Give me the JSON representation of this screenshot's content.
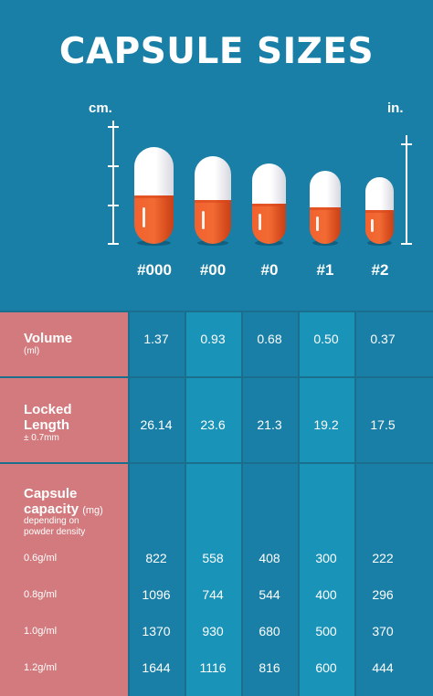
{
  "title": "CAPSULE SIZES",
  "units": {
    "left": "cm.",
    "right": "in."
  },
  "sizes": [
    "#000",
    "#00",
    "#0",
    "#1",
    "#2"
  ],
  "colors": {
    "background": "#1a7fa6",
    "label_column": "#d27a7d",
    "capsule_top": "#ffffff",
    "capsule_bottom": "#f2612e"
  },
  "rows": {
    "volume": {
      "label": "Volume",
      "unit": "(ml)",
      "values": [
        "1.37",
        "0.93",
        "0.68",
        "0.50",
        "0.37"
      ]
    },
    "locked_length": {
      "label_line1": "Locked",
      "label_line2": "Length",
      "unit": "± 0.7mm",
      "values": [
        "26.14",
        "23.6",
        "21.3",
        "19.2",
        "17.5"
      ]
    },
    "capacity": {
      "label": "Capsule",
      "label_line2": "capacity",
      "unit": "(mg)",
      "note_line1": "depending on",
      "note_line2": "powder density",
      "densities": [
        {
          "label": "0.6g/ml",
          "values": [
            "822",
            "558",
            "408",
            "300",
            "222"
          ]
        },
        {
          "label": "0.8g/ml",
          "values": [
            "1096",
            "744",
            "544",
            "400",
            "296"
          ]
        },
        {
          "label": "1.0g/ml",
          "values": [
            "1370",
            "930",
            "680",
            "500",
            "370"
          ]
        },
        {
          "label": "1.2g/ml",
          "values": [
            "1644",
            "1116",
            "816",
            "600",
            "444"
          ]
        }
      ]
    }
  }
}
